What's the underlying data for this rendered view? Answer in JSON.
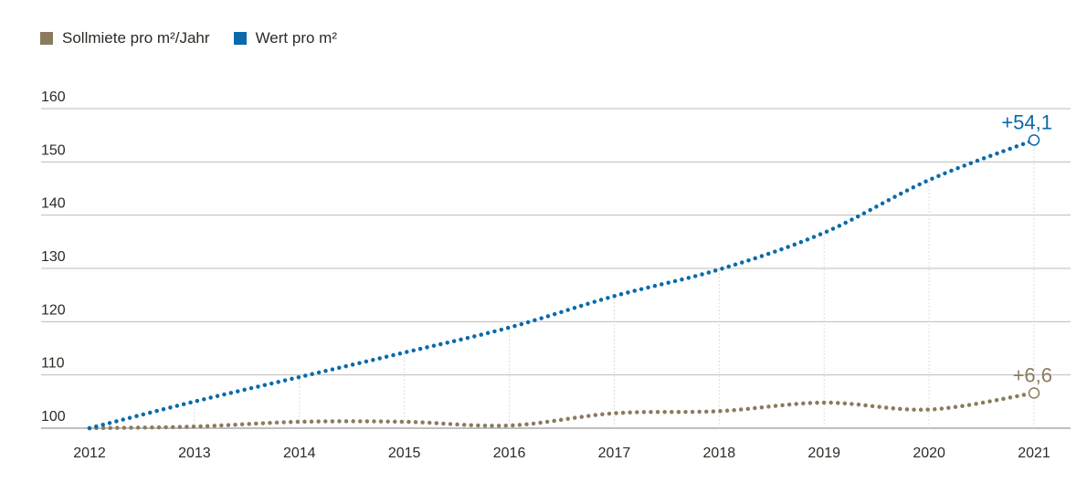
{
  "chart_data": {
    "type": "line",
    "x": [
      "2012",
      "2013",
      "2014",
      "2015",
      "2016",
      "2017",
      "2018",
      "2019",
      "2020",
      "2021"
    ],
    "series": [
      {
        "name": "Sollmiete pro m²/Jahr",
        "color": "#8b7b5e",
        "values": [
          100,
          100.3,
          101.2,
          101.2,
          100.5,
          102.8,
          103.2,
          104.8,
          103.5,
          106.6
        ],
        "end_label": "+6,6"
      },
      {
        "name": "Wert pro m²",
        "color": "#0a6aab",
        "values": [
          100,
          105,
          109.6,
          114.2,
          118.9,
          124.8,
          129.8,
          136.7,
          146.6,
          154.1
        ],
        "end_label": "+54,1"
      }
    ],
    "yticks": [
      "100",
      "110",
      "120",
      "130",
      "140",
      "150",
      "160"
    ],
    "ylim": [
      100,
      160
    ],
    "grid": true,
    "legend": "top-left",
    "title": "",
    "xlabel": "",
    "ylabel": ""
  }
}
